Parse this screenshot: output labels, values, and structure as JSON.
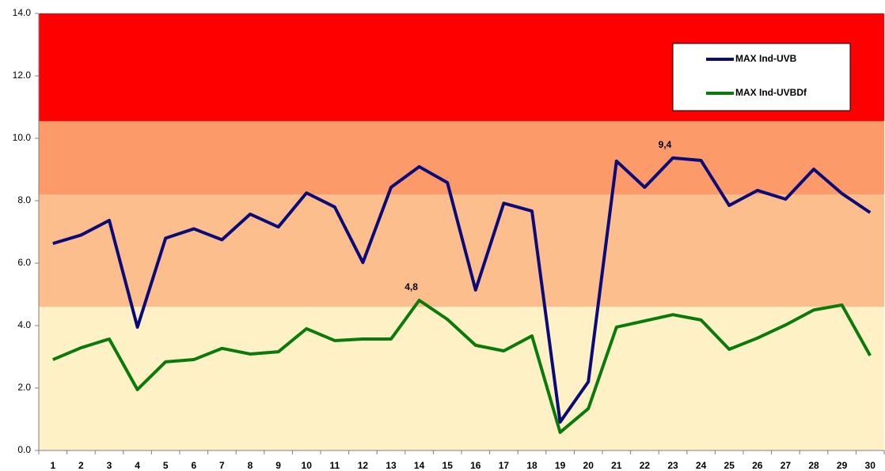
{
  "chart_data": {
    "type": "line",
    "categories": [
      "1",
      "2",
      "3",
      "4",
      "5",
      "6",
      "7",
      "8",
      "9",
      "10",
      "11",
      "12",
      "13",
      "14",
      "15",
      "16",
      "17",
      "18",
      "19",
      "20",
      "21",
      "22",
      "23",
      "24",
      "25",
      "26",
      "27",
      "28",
      "29",
      "30"
    ],
    "series": [
      {
        "name": "MAX Ind-UVB",
        "color": "#0a0a78",
        "values": [
          6.63,
          6.9,
          7.37,
          3.95,
          6.8,
          7.1,
          6.75,
          7.57,
          7.16,
          8.25,
          7.8,
          6.02,
          8.43,
          9.09,
          8.58,
          5.14,
          7.92,
          7.67,
          0.91,
          2.2,
          9.27,
          8.43,
          9.37,
          9.29,
          7.85,
          8.33,
          8.05,
          9.01,
          8.23,
          7.62
        ],
        "value_labels": [
          null,
          null,
          null,
          null,
          null,
          null,
          null,
          null,
          null,
          null,
          null,
          null,
          null,
          null,
          null,
          null,
          null,
          null,
          null,
          null,
          null,
          null,
          "9,4",
          null,
          null,
          null,
          null,
          null,
          null,
          null
        ],
        "label_color": "#1f1f7a"
      },
      {
        "name": "MAX Ind-UVBDf",
        "color": "#0a7a0a",
        "values": [
          2.91,
          3.29,
          3.57,
          1.95,
          2.84,
          2.91,
          3.27,
          3.09,
          3.16,
          3.9,
          3.52,
          3.57,
          3.57,
          4.81,
          4.2,
          3.37,
          3.19,
          3.67,
          0.58,
          1.34,
          3.95,
          4.15,
          4.35,
          4.18,
          3.24,
          3.6,
          4.02,
          4.5,
          4.66,
          3.04
        ],
        "value_labels": [
          null,
          null,
          null,
          null,
          null,
          null,
          null,
          null,
          null,
          null,
          null,
          null,
          null,
          "4,8",
          null,
          null,
          null,
          null,
          null,
          null,
          null,
          null,
          null,
          null,
          null,
          null,
          null,
          null,
          null,
          null
        ],
        "label_color": "#3a9a5a"
      }
    ],
    "bands": [
      {
        "from": 0,
        "to": 4.6,
        "color": "#fdf1c5"
      },
      {
        "from": 4.6,
        "to": 8.2,
        "color": "#fdbe8d"
      },
      {
        "from": 8.2,
        "to": 10.55,
        "color": "#fd9a6a"
      },
      {
        "from": 10.55,
        "to": 14,
        "color": "#fe0000"
      }
    ],
    "ylim": [
      0,
      14
    ],
    "yticks": [
      {
        "value": 0,
        "label": "0.0"
      },
      {
        "value": 2,
        "label": "2.0"
      },
      {
        "value": 4,
        "label": "4.0"
      },
      {
        "value": 6,
        "label": "6.0"
      },
      {
        "value": 8,
        "label": "8.0"
      },
      {
        "value": 10,
        "label": "10.0"
      },
      {
        "value": 12,
        "label": "12.0"
      },
      {
        "value": 14,
        "label": "14.0"
      }
    ],
    "legend": "top-right"
  }
}
